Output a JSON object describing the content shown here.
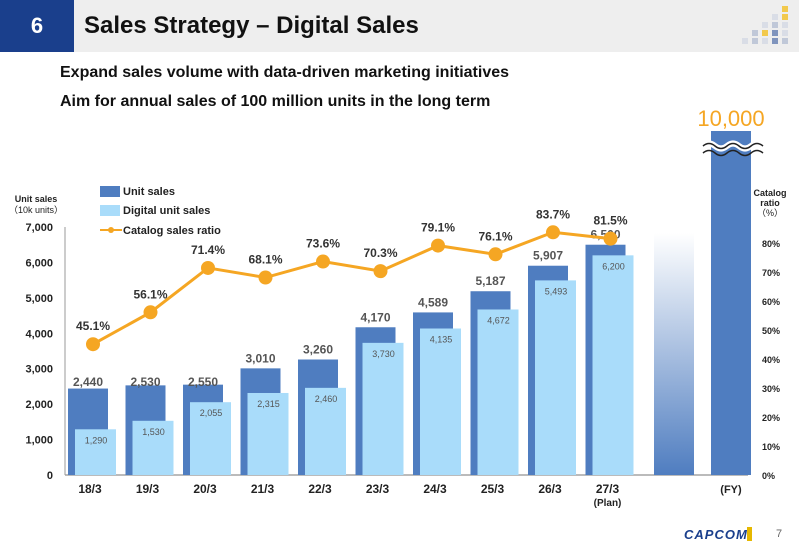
{
  "header": {
    "section_number": "6",
    "title": "Sales Strategy – Digital Sales"
  },
  "subtitles": [
    "Expand sales volume with data-driven marketing initiatives",
    "Aim for annual sales of 100 million units in the long term"
  ],
  "footer": {
    "logo_text": "CAPCOM",
    "page_number": "7"
  },
  "colors": {
    "unit_sales": "#4f7dc0",
    "digital_unit_sales": "#a9dcfa",
    "catalog_line": "#f5a623",
    "target_number": "#f5a623",
    "header_box": "#1a3f8c"
  },
  "chart_data": {
    "type": "bar",
    "categories": [
      "18/3",
      "19/3",
      "20/3",
      "21/3",
      "22/3",
      "23/3",
      "24/3",
      "25/3",
      "26/3",
      "27/3"
    ],
    "category_sublabels": {
      "27/3": "(Plan)"
    },
    "x_unit_label": "(FY)",
    "series": [
      {
        "name": "Unit sales",
        "kind": "bar",
        "values": [
          2440,
          2530,
          2550,
          3010,
          3260,
          4170,
          4589,
          5187,
          5907,
          6500
        ],
        "labels": [
          "2,440",
          "2,530",
          "2,550",
          "3,010",
          "3,260",
          "4,170",
          "4,589",
          "5,187",
          "5,907",
          "6,500"
        ]
      },
      {
        "name": "Digital unit sales",
        "kind": "bar",
        "values": [
          1290,
          1530,
          2055,
          2315,
          2460,
          3730,
          4135,
          4672,
          5493,
          6200
        ],
        "labels": [
          "1,290",
          "1,530",
          "2,055",
          "2,315",
          "2,460",
          "3,730",
          "4,135",
          "4,672",
          "5,493",
          "6,200"
        ]
      },
      {
        "name": "Catalog sales ratio",
        "kind": "line",
        "axis": "right",
        "values": [
          45.1,
          56.1,
          71.4,
          68.1,
          73.6,
          70.3,
          79.1,
          76.1,
          83.7,
          81.5
        ],
        "labels": [
          "45.1%",
          "56.1%",
          "71.4%",
          "68.1%",
          "73.6%",
          "70.3%",
          "79.1%",
          "76.1%",
          "83.7%",
          "81.5%"
        ]
      }
    ],
    "long_term_target": {
      "value": 10000,
      "label": "10,000"
    },
    "y_left": {
      "label_lines": [
        "Unit sales",
        "（10k units）"
      ],
      "ylim": [
        0,
        7000
      ],
      "ticks": [
        0,
        1000,
        2000,
        3000,
        4000,
        5000,
        6000,
        7000
      ],
      "tick_labels": [
        "0",
        "1,000",
        "2,000",
        "3,000",
        "4,000",
        "5,000",
        "6,000",
        "7,000"
      ]
    },
    "y_right": {
      "label_lines": [
        "Catalog",
        "ratio",
        "（%）"
      ],
      "ylim": [
        0,
        85
      ],
      "ticks": [
        0,
        10,
        20,
        30,
        40,
        50,
        60,
        70,
        80
      ],
      "tick_labels": [
        "0%",
        "10%",
        "20%",
        "30%",
        "40%",
        "50%",
        "60%",
        "70%",
        "80%"
      ]
    },
    "legend_position": "top-left"
  }
}
